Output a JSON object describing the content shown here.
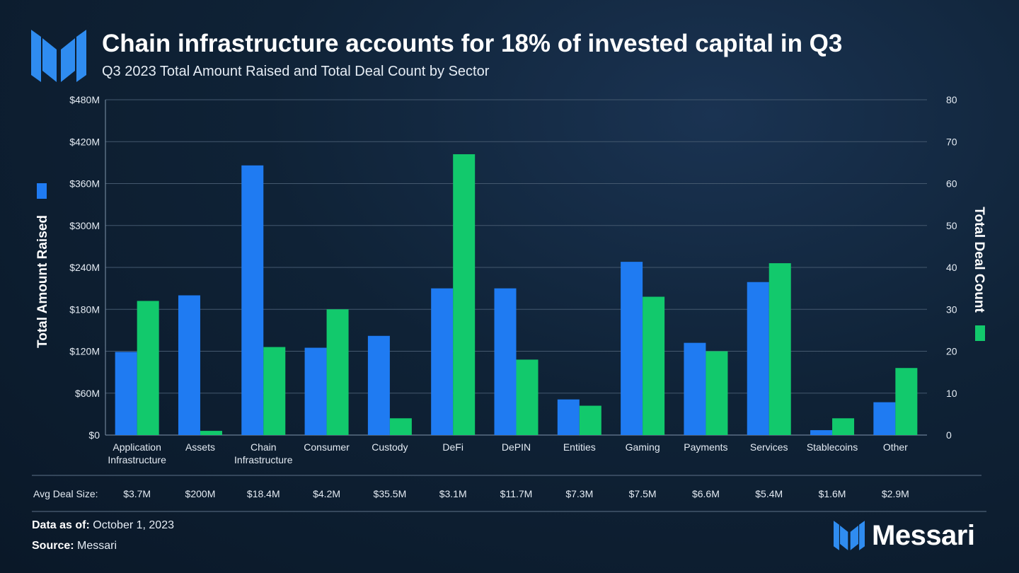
{
  "header": {
    "title": "Chain infrastructure accounts for 18% of invested capital in Q3",
    "subtitle": "Q3 2023 Total Amount Raised and Total Deal Count by Sector"
  },
  "footer": {
    "data_as_of_label": "Data as of:",
    "data_as_of_value": "October 1, 2023",
    "source_label": "Source:",
    "source_value": "Messari",
    "brand": "Messari"
  },
  "colors": {
    "amount": "#1f7bf2",
    "deals": "#12c96c",
    "brand": "#2f8cf0"
  },
  "chart_data": {
    "type": "bar",
    "title": "Chain infrastructure accounts for 18% of invested capital in Q3",
    "subtitle": "Q3 2023 Total Amount Raised and Total Deal Count by Sector",
    "categories": [
      "Application Infrastructure",
      "Assets",
      "Chain Infrastructure",
      "Consumer",
      "Custody",
      "DeFi",
      "DePIN",
      "Entities",
      "Gaming",
      "Payments",
      "Services",
      "Stablecoins",
      "Other"
    ],
    "series": [
      {
        "name": "Total Amount Raised",
        "axis": "left",
        "color": "#1f7bf2",
        "values": [
          119,
          200,
          386,
          125,
          142,
          210,
          210,
          51,
          248,
          132,
          219,
          7,
          47
        ]
      },
      {
        "name": "Total Deal Count",
        "axis": "right",
        "color": "#12c96c",
        "values": [
          32,
          1,
          21,
          30,
          4,
          67,
          18,
          7,
          33,
          20,
          41,
          4,
          16
        ]
      }
    ],
    "ylabel_left": "Total Amount Raised",
    "ylabel_right": "Total Deal Count",
    "ylim_left": [
      0,
      480
    ],
    "ylim_right": [
      0,
      80
    ],
    "yticks_left": [
      "$0",
      "$60M",
      "$120M",
      "$180M",
      "$240M",
      "$300M",
      "$360M",
      "$420M",
      "$480M"
    ],
    "yticks_right": [
      "0",
      "10",
      "20",
      "30",
      "40",
      "50",
      "60",
      "70",
      "80"
    ],
    "avg_deal_label": "Avg Deal Size:",
    "avg_deal_size": [
      "$3.7M",
      "$200M",
      "$18.4M",
      "$4.2M",
      "$35.5M",
      "$3.1M",
      "$11.7M",
      "$7.3M",
      "$7.5M",
      "$6.6M",
      "$5.4M",
      "$1.6M",
      "$2.9M"
    ],
    "grid": true
  }
}
